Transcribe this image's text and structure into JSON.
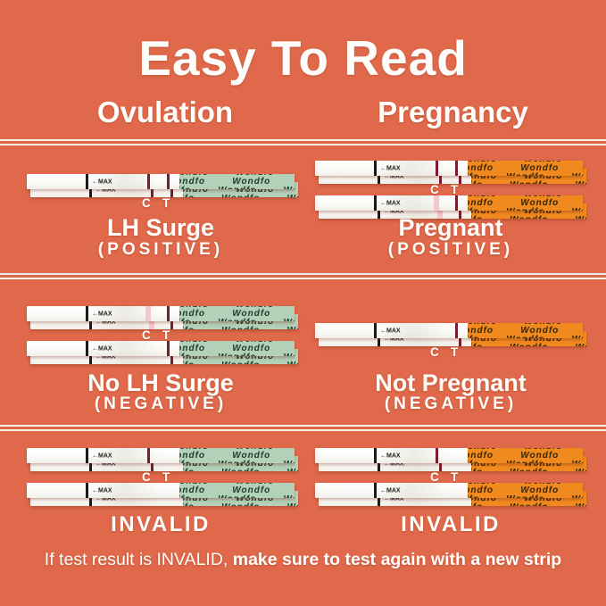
{
  "title": "Easy To Read",
  "columns": [
    {
      "label": "Ovulation"
    },
    {
      "label": "Pregnancy"
    }
  ],
  "strip": {
    "brand": "Wondfo",
    "max_label": "←MAX",
    "c_label": "C",
    "t_label": "T"
  },
  "rows": [
    {
      "cells": [
        {
          "label": "LH Surge",
          "sublabel": "(POSITIVE)",
          "variant": "green",
          "groups": [
            {
              "c": "strong",
              "t": "strong"
            }
          ],
          "ct_after": 0
        },
        {
          "label": "Pregnant",
          "sublabel": "(POSITIVE)",
          "variant": "orange",
          "groups": [
            {
              "c": "strong",
              "t": "strong"
            },
            {
              "c": "faint",
              "t": "strong"
            }
          ],
          "ct_after": 0
        }
      ]
    },
    {
      "cells": [
        {
          "label": "No LH Surge",
          "sublabel": "(NEGATIVE)",
          "variant": "green",
          "groups": [
            {
              "c": "faint",
              "t": "strong"
            },
            {
              "c": "none",
              "t": "strong"
            }
          ],
          "ct_after": 0
        },
        {
          "label": "Not Pregnant",
          "sublabel": "(NEGATIVE)",
          "variant": "orange",
          "groups": [
            {
              "c": "none",
              "t": "strong"
            }
          ],
          "ct_after": 0
        }
      ]
    },
    {
      "cells": [
        {
          "label": "INVALID",
          "sublabel": "",
          "variant": "green",
          "groups": [
            {
              "c": "strong",
              "t": "none"
            },
            {
              "c": "none",
              "t": "none"
            }
          ],
          "ct_after": 0
        },
        {
          "label": "INVALID",
          "sublabel": "",
          "variant": "orange",
          "groups": [
            {
              "c": "strong",
              "t": "none"
            },
            {
              "c": "none",
              "t": "none"
            }
          ],
          "ct_after": 0
        }
      ]
    }
  ],
  "footer": {
    "normal": "If test result is INVALID, ",
    "bold": "make sure to test again with a new strip"
  },
  "colors": {
    "background": "#E0694B",
    "divider": "#F7F0E6",
    "text": "#FFFDFA",
    "strip_body": "#FFFFFF",
    "handle_green": "#B3D1B9",
    "handle_orange": "#F08A1E",
    "line_strong": "#7B1E2C",
    "line_faint": "#F4C6CF",
    "max_bar": "#1A1A1A"
  }
}
